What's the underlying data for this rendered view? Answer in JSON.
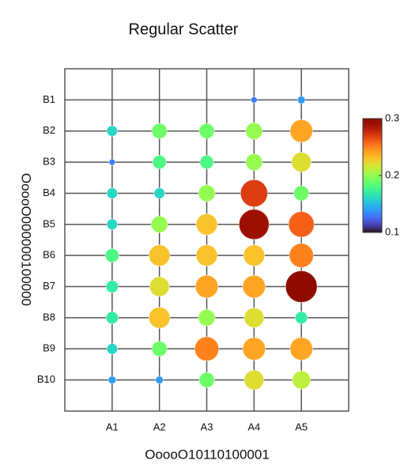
{
  "chart_data": {
    "type": "bubble-matrix",
    "title": "Regular Scatter",
    "x_label": "OoooO10110100001",
    "y_label": "OoooO000000100000",
    "x_categories": [
      "A1",
      "A2",
      "A3",
      "A4",
      "A5"
    ],
    "y_categories": [
      "B1",
      "B2",
      "B3",
      "B4",
      "B5",
      "B6",
      "B7",
      "B8",
      "B9",
      "B10"
    ],
    "values": [
      [
        null,
        null,
        null,
        0.13,
        0.14
      ],
      [
        0.16,
        0.19,
        0.19,
        0.2,
        0.24
      ],
      [
        0.13,
        0.18,
        0.18,
        0.2,
        0.22
      ],
      [
        0.16,
        0.16,
        0.2,
        0.27,
        0.19
      ],
      [
        0.16,
        0.2,
        0.23,
        0.29,
        0.26
      ],
      [
        0.18,
        0.23,
        0.23,
        0.23,
        0.25
      ],
      [
        0.17,
        0.22,
        0.24,
        0.24,
        0.3
      ],
      [
        0.17,
        0.23,
        0.2,
        0.22,
        0.17
      ],
      [
        0.16,
        0.19,
        0.25,
        0.24,
        0.24
      ],
      [
        0.14,
        0.14,
        0.19,
        0.22,
        0.21
      ]
    ],
    "colormap": "turbo",
    "clim": [
      0.1,
      0.3
    ],
    "cticks": [
      0.1,
      0.2,
      0.3
    ],
    "grid": true
  }
}
